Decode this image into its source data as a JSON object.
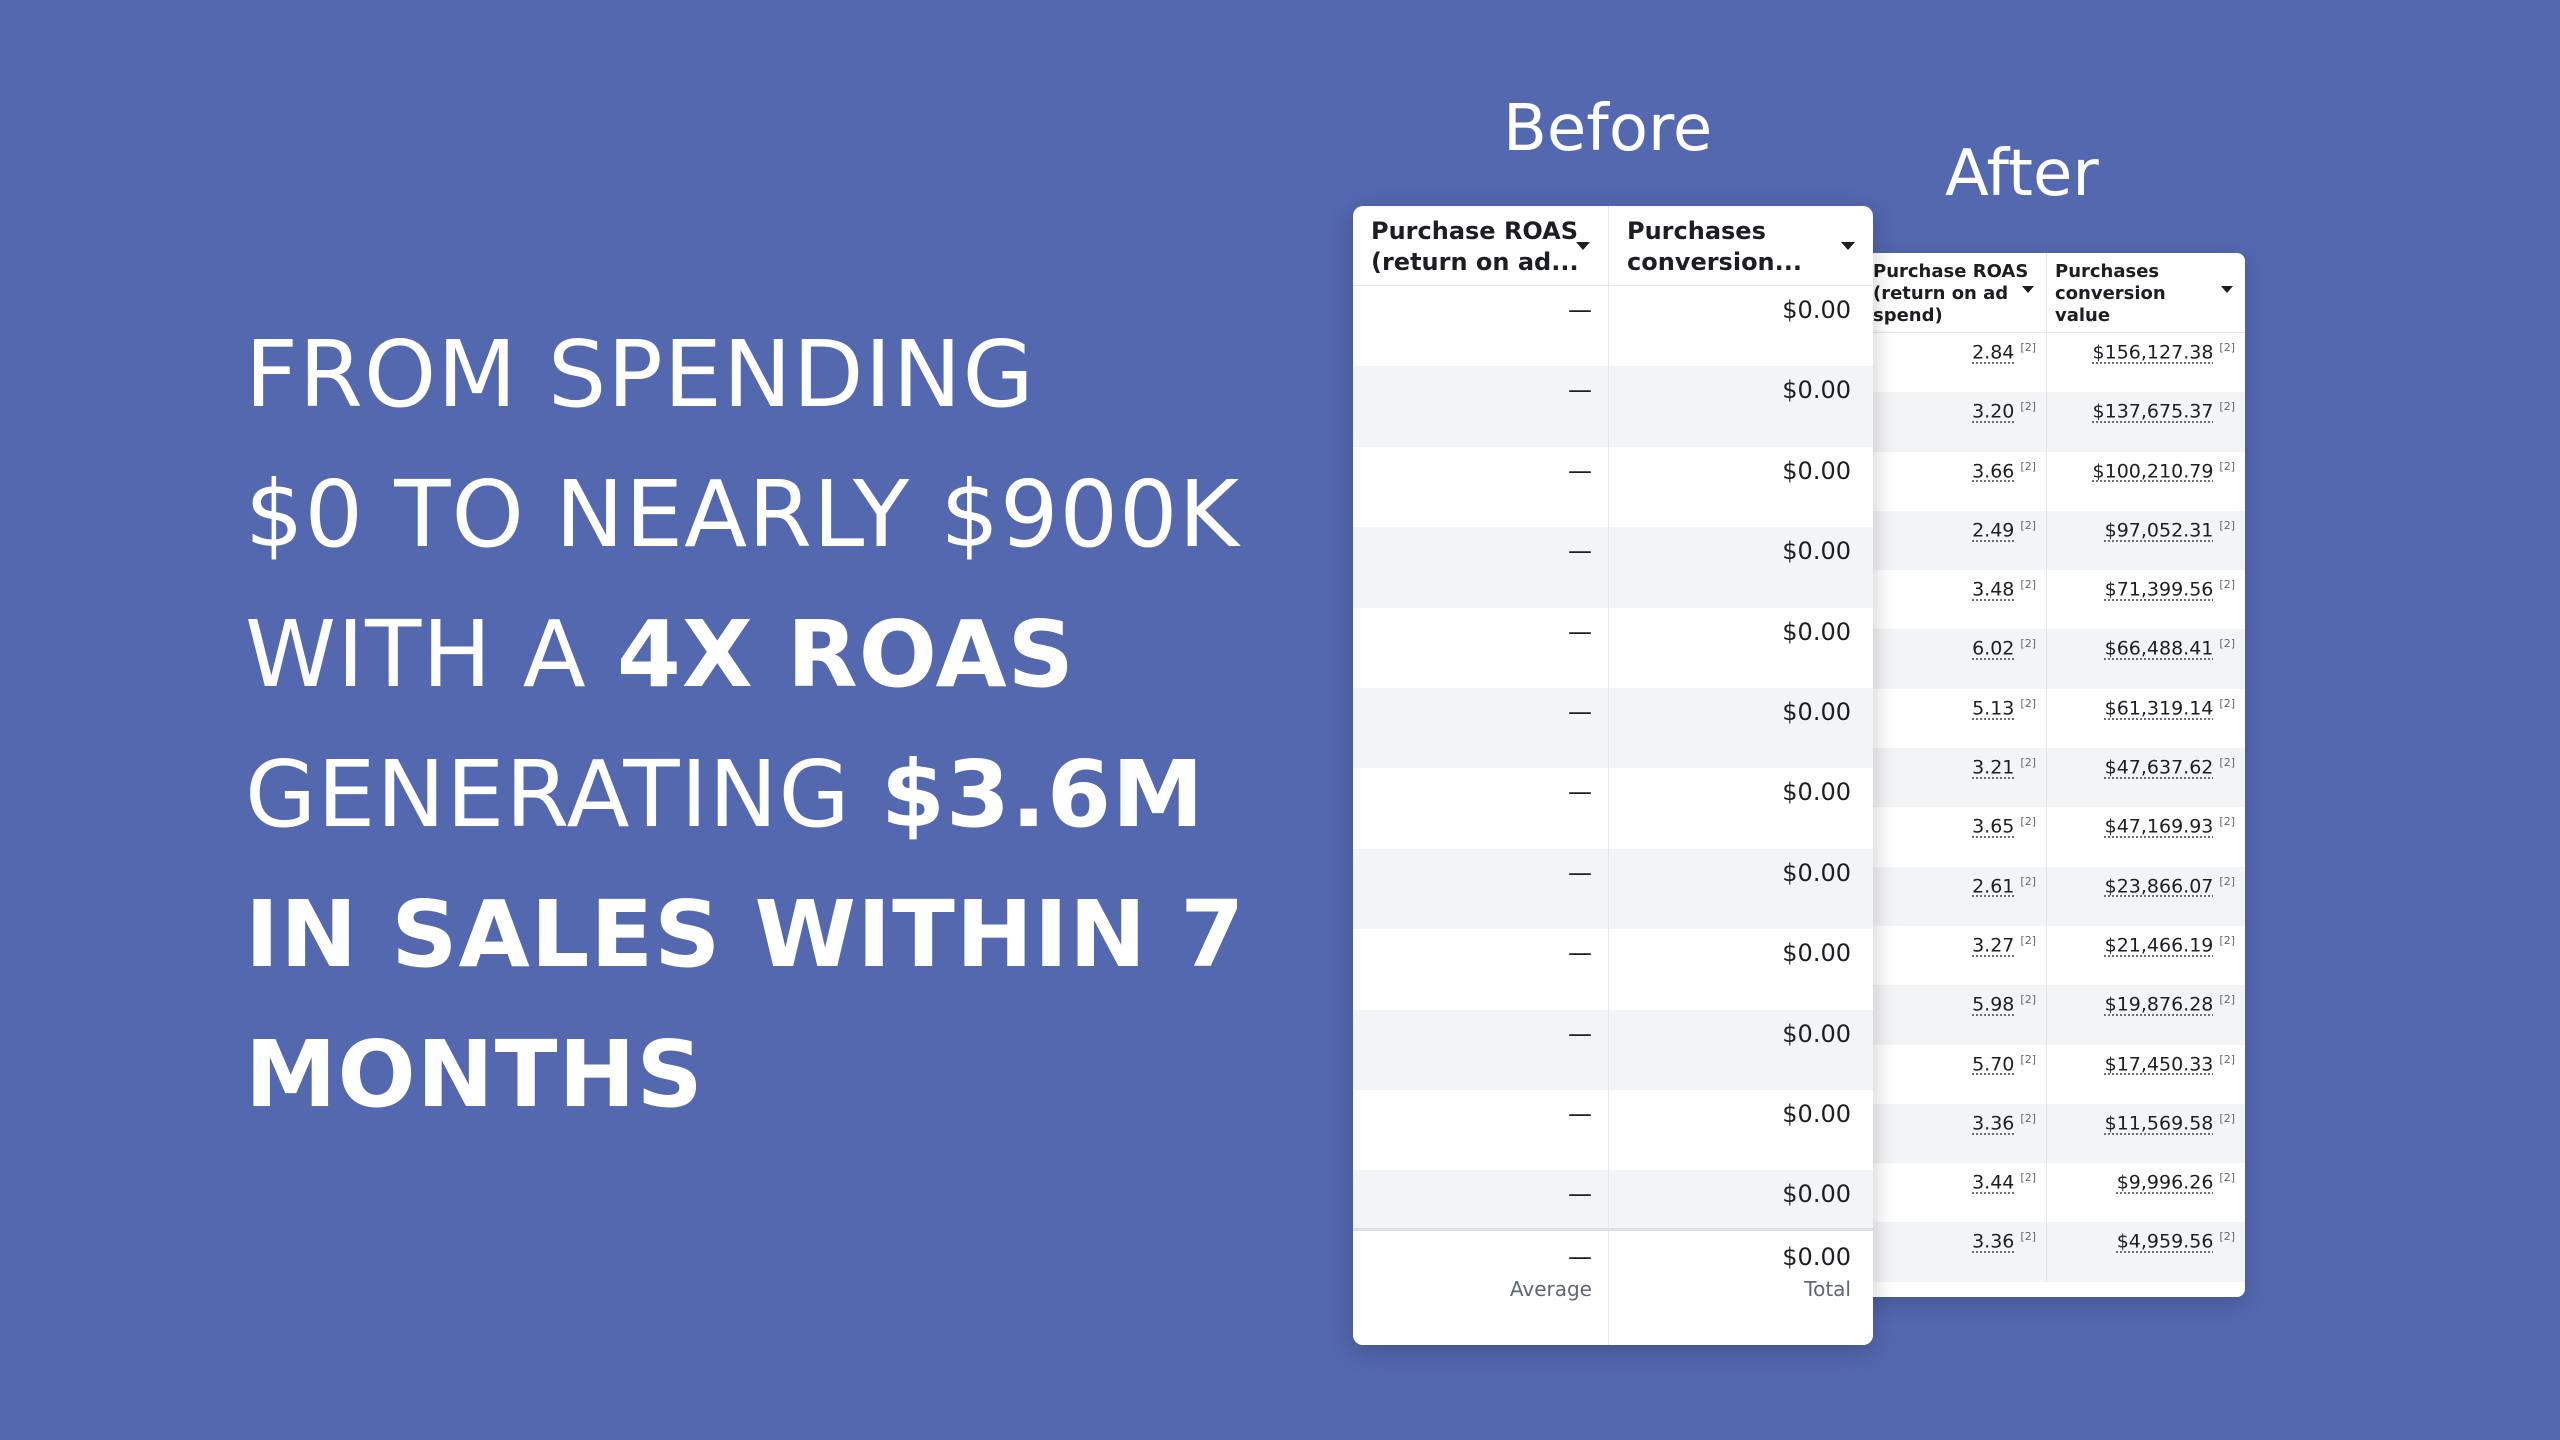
{
  "headline": {
    "line1": "FROM SPENDING",
    "line2": "$0 TO NEARLY $900K",
    "line3_light": "WITH A ",
    "line3_bold": "4X ROAS",
    "line4_light": "GENERATING ",
    "line4_bold": "$3.6M",
    "line5": "IN SALES WITHIN 7",
    "line6": "MONTHS"
  },
  "labels": {
    "before": "Before",
    "after": "After"
  },
  "before_table": {
    "col1_header": "Purchase ROAS (return on ad...",
    "col2_header": "Purchases conversion...",
    "col1_header_l1": "Purchase ROAS",
    "col1_header_l2": "(return on ad...",
    "col2_header_l1": "Purchases",
    "col2_header_l2": "conversion...",
    "rows": [
      {
        "roas": "—",
        "value": "$0.00"
      },
      {
        "roas": "—",
        "value": "$0.00"
      },
      {
        "roas": "—",
        "value": "$0.00"
      },
      {
        "roas": "—",
        "value": "$0.00"
      },
      {
        "roas": "—",
        "value": "$0.00"
      },
      {
        "roas": "—",
        "value": "$0.00"
      },
      {
        "roas": "—",
        "value": "$0.00"
      },
      {
        "roas": "—",
        "value": "$0.00"
      },
      {
        "roas": "—",
        "value": "$0.00"
      },
      {
        "roas": "—",
        "value": "$0.00"
      },
      {
        "roas": "—",
        "value": "$0.00"
      },
      {
        "roas": "—",
        "value": "$0.00"
      }
    ],
    "footer": {
      "roas": "—",
      "roas_label": "Average",
      "value": "$0.00",
      "value_label": "Total"
    }
  },
  "after_table": {
    "col1_header_l1": "Purchase ROAS",
    "col1_header_l2": "(return on ad",
    "col1_header_l3": "spend)",
    "col2_header_l1": "Purchases",
    "col2_header_l2": "conversion",
    "col2_header_l3": "value",
    "note_marker": "[2]",
    "rows": [
      {
        "roas": "2.84",
        "value": "$156,127.38"
      },
      {
        "roas": "3.20",
        "value": "$137,675.37"
      },
      {
        "roas": "3.66",
        "value": "$100,210.79"
      },
      {
        "roas": "2.49",
        "value": "$97,052.31"
      },
      {
        "roas": "3.48",
        "value": "$71,399.56"
      },
      {
        "roas": "6.02",
        "value": "$66,488.41"
      },
      {
        "roas": "5.13",
        "value": "$61,319.14"
      },
      {
        "roas": "3.21",
        "value": "$47,637.62"
      },
      {
        "roas": "3.65",
        "value": "$47,169.93"
      },
      {
        "roas": "2.61",
        "value": "$23,866.07"
      },
      {
        "roas": "3.27",
        "value": "$21,466.19"
      },
      {
        "roas": "5.98",
        "value": "$19,876.28"
      },
      {
        "roas": "5.70",
        "value": "$17,450.33"
      },
      {
        "roas": "3.36",
        "value": "$11,569.58"
      },
      {
        "roas": "3.44",
        "value": "$9,996.26"
      },
      {
        "roas": "3.36",
        "value": "$4,959.56"
      }
    ]
  }
}
